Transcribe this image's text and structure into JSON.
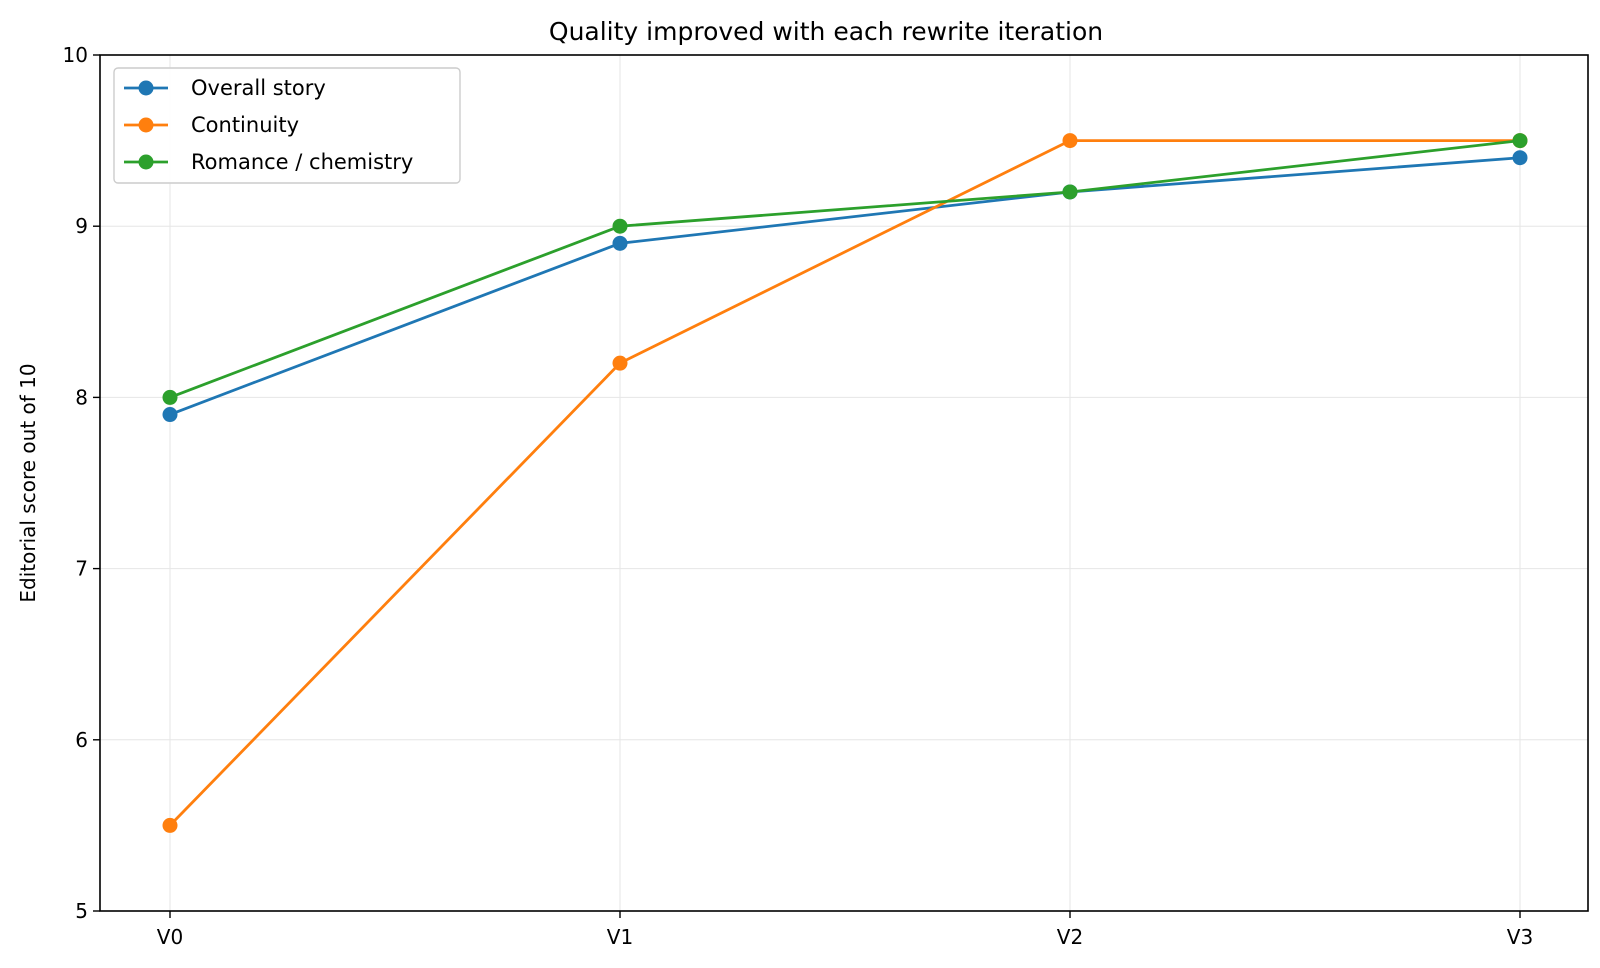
{
  "chart_data": {
    "type": "line",
    "title": "Quality improved with each rewrite iteration",
    "xlabel": "",
    "ylabel": "Editorial score out of 10",
    "categories": [
      "V0",
      "V1",
      "V2",
      "V3"
    ],
    "ylim": [
      5,
      10
    ],
    "yticks": [
      "5",
      "6",
      "7",
      "8",
      "9",
      "10"
    ],
    "grid": true,
    "legend_position": "top-left",
    "series": [
      {
        "name": "Overall story",
        "color": "#1f77b4",
        "values": [
          7.9,
          8.9,
          9.2,
          9.4
        ]
      },
      {
        "name": "Continuity",
        "color": "#ff7f0e",
        "values": [
          5.5,
          8.2,
          9.5,
          9.5
        ]
      },
      {
        "name": "Romance / chemistry",
        "color": "#2ca02c",
        "values": [
          8.0,
          9.0,
          9.2,
          9.5
        ]
      }
    ]
  }
}
